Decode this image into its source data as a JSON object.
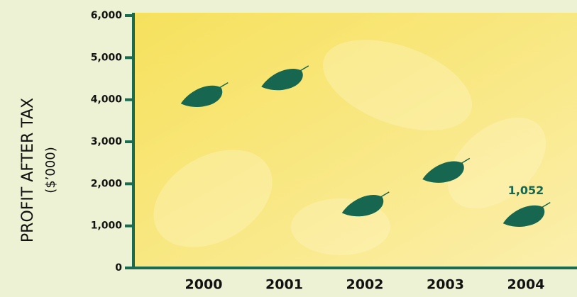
{
  "chart_data": {
    "type": "leaf",
    "ylabel": "PROFIT AFTER TAX",
    "ylabel_units": "($’000)",
    "categories": [
      "2000",
      "2001",
      "2002",
      "2003",
      "2004"
    ],
    "values": [
      3900,
      4300,
      1300,
      2100,
      1052
    ],
    "value_labels": [
      null,
      null,
      null,
      null,
      "1,052"
    ],
    "color": "#17664f",
    "ylim": [
      0,
      6000
    ],
    "yticks": [
      0,
      {
        "value": 1000,
        "label": "1,000"
      },
      {
        "value": 2000,
        "label": "2,000"
      },
      {
        "value": 3000,
        "label": "3,000"
      },
      {
        "value": 4000,
        "label": "4,000"
      },
      {
        "value": 5000,
        "label": "5,000"
      },
      {
        "value": 6000,
        "label": "6,000"
      }
    ]
  }
}
